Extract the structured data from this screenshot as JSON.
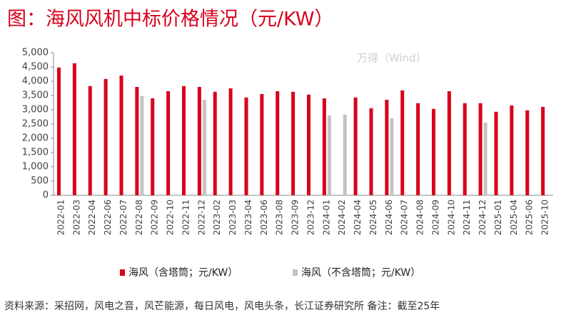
{
  "chart_data": {
    "type": "bar",
    "title": "图：海风风机中标价格情况（元/KW）",
    "watermark": "万得（Wind）",
    "source": "资料来源：采招网，风电之音，风芒能源，每日风电，风电头条，长江证券研究所  备注：截至25年",
    "categories": [
      "2022-01",
      "2022-03",
      "2022-04",
      "2022-06",
      "2022-07",
      "2022-08",
      "2022-09",
      "2022-10",
      "2022-11",
      "2022-12",
      "2023-02",
      "2023-03",
      "2023-04",
      "2023-06",
      "2023-08",
      "2023-09",
      "2023-12",
      "2024-01",
      "2024-02",
      "2024-04",
      "2024-05",
      "2024-06",
      "2024-07",
      "2024-08",
      "2024-09",
      "2024-10",
      "2024-11",
      "2024-12",
      "2025-01",
      "2025-04",
      "2025-06",
      "2025-10"
    ],
    "series": [
      {
        "name": "海风（含塔筒；元/KW）",
        "color": "#d9001b",
        "values": [
          4480,
          4630,
          3830,
          4080,
          4200,
          3800,
          3400,
          3650,
          3830,
          3800,
          3630,
          3750,
          3430,
          3550,
          3650,
          3630,
          3530,
          3400,
          null,
          3430,
          3050,
          3350,
          3680,
          3230,
          3030,
          3650,
          3230,
          3230,
          2930,
          3150,
          2980,
          3100
        ]
      },
      {
        "name": "海风（不含塔筒；元/KW）",
        "color": "#c4c4c4",
        "values": [
          null,
          null,
          null,
          null,
          null,
          3480,
          null,
          null,
          null,
          3350,
          null,
          null,
          null,
          null,
          null,
          null,
          null,
          2800,
          2830,
          null,
          null,
          2700,
          null,
          null,
          null,
          null,
          null,
          2550,
          null,
          null,
          null,
          null
        ]
      }
    ],
    "ylim": [
      0,
      5000
    ],
    "yticks": [
      0,
      500,
      {
        "value": 1000,
        "label": "1,000"
      },
      {
        "value": 1500,
        "label": "1,500"
      },
      {
        "value": 2000,
        "label": "2,000"
      },
      {
        "value": 2500,
        "label": "2,500"
      },
      {
        "value": 3000,
        "label": "3,000"
      },
      {
        "value": 3500,
        "label": "3,500"
      },
      {
        "value": 4000,
        "label": "4,000"
      },
      {
        "value": 4500,
        "label": "4,500"
      },
      {
        "value": 5000,
        "label": "5,000"
      }
    ],
    "legend": "bottom"
  }
}
